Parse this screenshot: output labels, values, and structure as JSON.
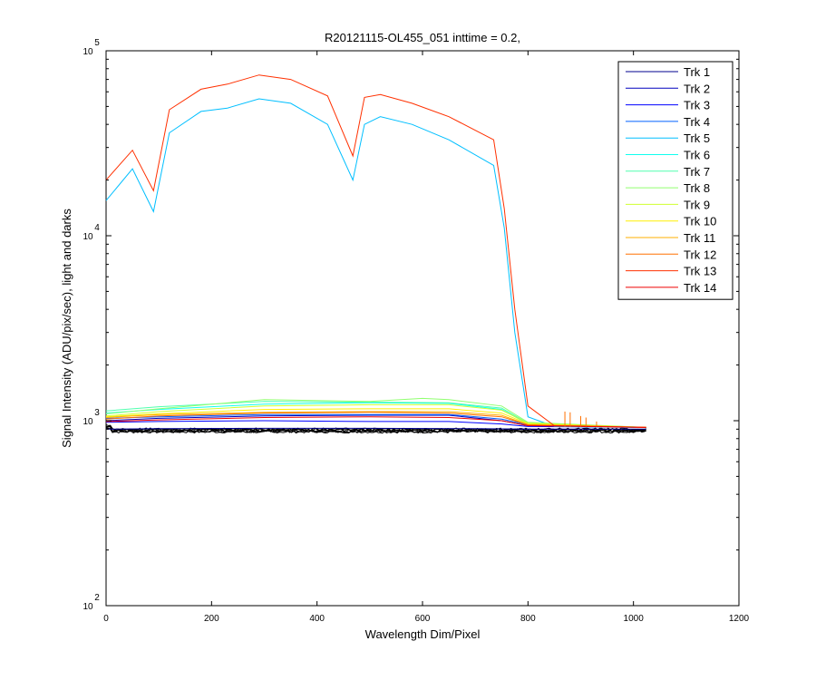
{
  "chart_data": {
    "type": "line",
    "title": "R20121115-OL455_051 inttime = 0.2,",
    "xlabel": "Wavelength Dim/Pixel",
    "ylabel": "Signal Intensity (ADU/pix/sec), light and darks",
    "xlim": [
      0,
      1200
    ],
    "ylim": [
      100,
      100000
    ],
    "yscale": "log",
    "x_ticks": [
      0,
      200,
      400,
      600,
      800,
      1000,
      1200
    ],
    "y_ticks": [
      {
        "value": 100,
        "base": "10",
        "exp": "2"
      },
      {
        "value": 1000,
        "base": "10",
        "exp": "3"
      },
      {
        "value": 10000,
        "base": "10",
        "exp": "4"
      },
      {
        "value": 100000,
        "base": "10",
        "exp": "5"
      }
    ],
    "grid": false,
    "legend_position": "top-right",
    "series": [
      {
        "name": "Trk 1",
        "color": "#00008f",
        "x": [
          0,
          100,
          300,
          500,
          700,
          800,
          1024
        ],
        "y": [
          900,
          905,
          910,
          910,
          905,
          900,
          900
        ]
      },
      {
        "name": "Trk 2",
        "color": "#0000bf",
        "x": [
          0,
          100,
          300,
          500,
          650,
          750,
          800,
          1024
        ],
        "y": [
          1000,
          1030,
          1060,
          1070,
          1070,
          1000,
          940,
          920
        ]
      },
      {
        "name": "Trk 3",
        "color": "#0000ff",
        "x": [
          0,
          100,
          300,
          500,
          650,
          750,
          800,
          1024
        ],
        "y": [
          980,
          990,
          1000,
          990,
          990,
          960,
          930,
          920
        ]
      },
      {
        "name": "Trk 4",
        "color": "#0060ff",
        "x": [
          0,
          100,
          300,
          500,
          650,
          750,
          800,
          1024
        ],
        "y": [
          1030,
          1050,
          1080,
          1080,
          1080,
          1020,
          950,
          920
        ]
      },
      {
        "name": "Trk 5",
        "color": "#00bfff",
        "x": [
          0,
          50,
          90,
          120,
          180,
          230,
          290,
          350,
          420,
          468,
          490,
          520,
          580,
          650,
          735,
          755,
          775,
          800,
          850,
          1024
        ],
        "y": [
          15500,
          23000,
          13500,
          36000,
          47000,
          49000,
          55000,
          52000,
          40000,
          20000,
          40000,
          44000,
          40000,
          33000,
          24000,
          11000,
          3000,
          1050,
          930,
          920
        ]
      },
      {
        "name": "Trk 6",
        "color": "#10ffef",
        "x": [
          0,
          100,
          300,
          500,
          650,
          750,
          800,
          1024
        ],
        "y": [
          1100,
          1150,
          1230,
          1250,
          1240,
          1150,
          960,
          920
        ]
      },
      {
        "name": "Trk 7",
        "color": "#50ffaf",
        "x": [
          0,
          100,
          300,
          500,
          650,
          750,
          800,
          1024
        ],
        "y": [
          1130,
          1190,
          1270,
          1260,
          1250,
          1170,
          970,
          920
        ]
      },
      {
        "name": "Trk 8",
        "color": "#90ff6f",
        "x": [
          0,
          100,
          300,
          500,
          600,
          650,
          750,
          800,
          1024
        ],
        "y": [
          1090,
          1160,
          1300,
          1270,
          1320,
          1300,
          1200,
          980,
          920
        ]
      },
      {
        "name": "Trk 9",
        "color": "#cfff30",
        "x": [
          0,
          100,
          300,
          500,
          650,
          750,
          800,
          1024
        ],
        "y": [
          1060,
          1120,
          1200,
          1220,
          1220,
          1140,
          970,
          920
        ]
      },
      {
        "name": "Trk 10",
        "color": "#ffef00",
        "x": [
          0,
          100,
          300,
          500,
          650,
          750,
          800,
          1024
        ],
        "y": [
          1050,
          1090,
          1150,
          1160,
          1160,
          1100,
          960,
          920
        ]
      },
      {
        "name": "Trk 11",
        "color": "#ffaf00",
        "x": [
          0,
          100,
          300,
          500,
          650,
          750,
          800,
          1024
        ],
        "y": [
          1040,
          1080,
          1110,
          1120,
          1120,
          1070,
          950,
          920
        ]
      },
      {
        "name": "Trk 12",
        "color": "#ff7000",
        "x": [
          0,
          100,
          300,
          500,
          650,
          750,
          800,
          1024
        ],
        "y": [
          1020,
          1060,
          1100,
          1110,
          1100,
          1050,
          950,
          920
        ]
      },
      {
        "name": "Trk 13",
        "color": "#ff3000",
        "x": [
          0,
          50,
          90,
          120,
          180,
          230,
          290,
          350,
          420,
          468,
          490,
          520,
          580,
          650,
          735,
          755,
          775,
          800,
          850,
          1024
        ],
        "y": [
          20000,
          29000,
          17500,
          48000,
          62000,
          66000,
          74000,
          70000,
          57000,
          27000,
          56000,
          58000,
          52000,
          44000,
          33000,
          14000,
          4000,
          1200,
          940,
          920
        ]
      },
      {
        "name": "Trk 14",
        "color": "#ef0000",
        "x": [
          0,
          100,
          300,
          500,
          650,
          750,
          800,
          1024
        ],
        "y": [
          990,
          1010,
          1040,
          1050,
          1040,
          1000,
          940,
          920
        ]
      }
    ]
  }
}
